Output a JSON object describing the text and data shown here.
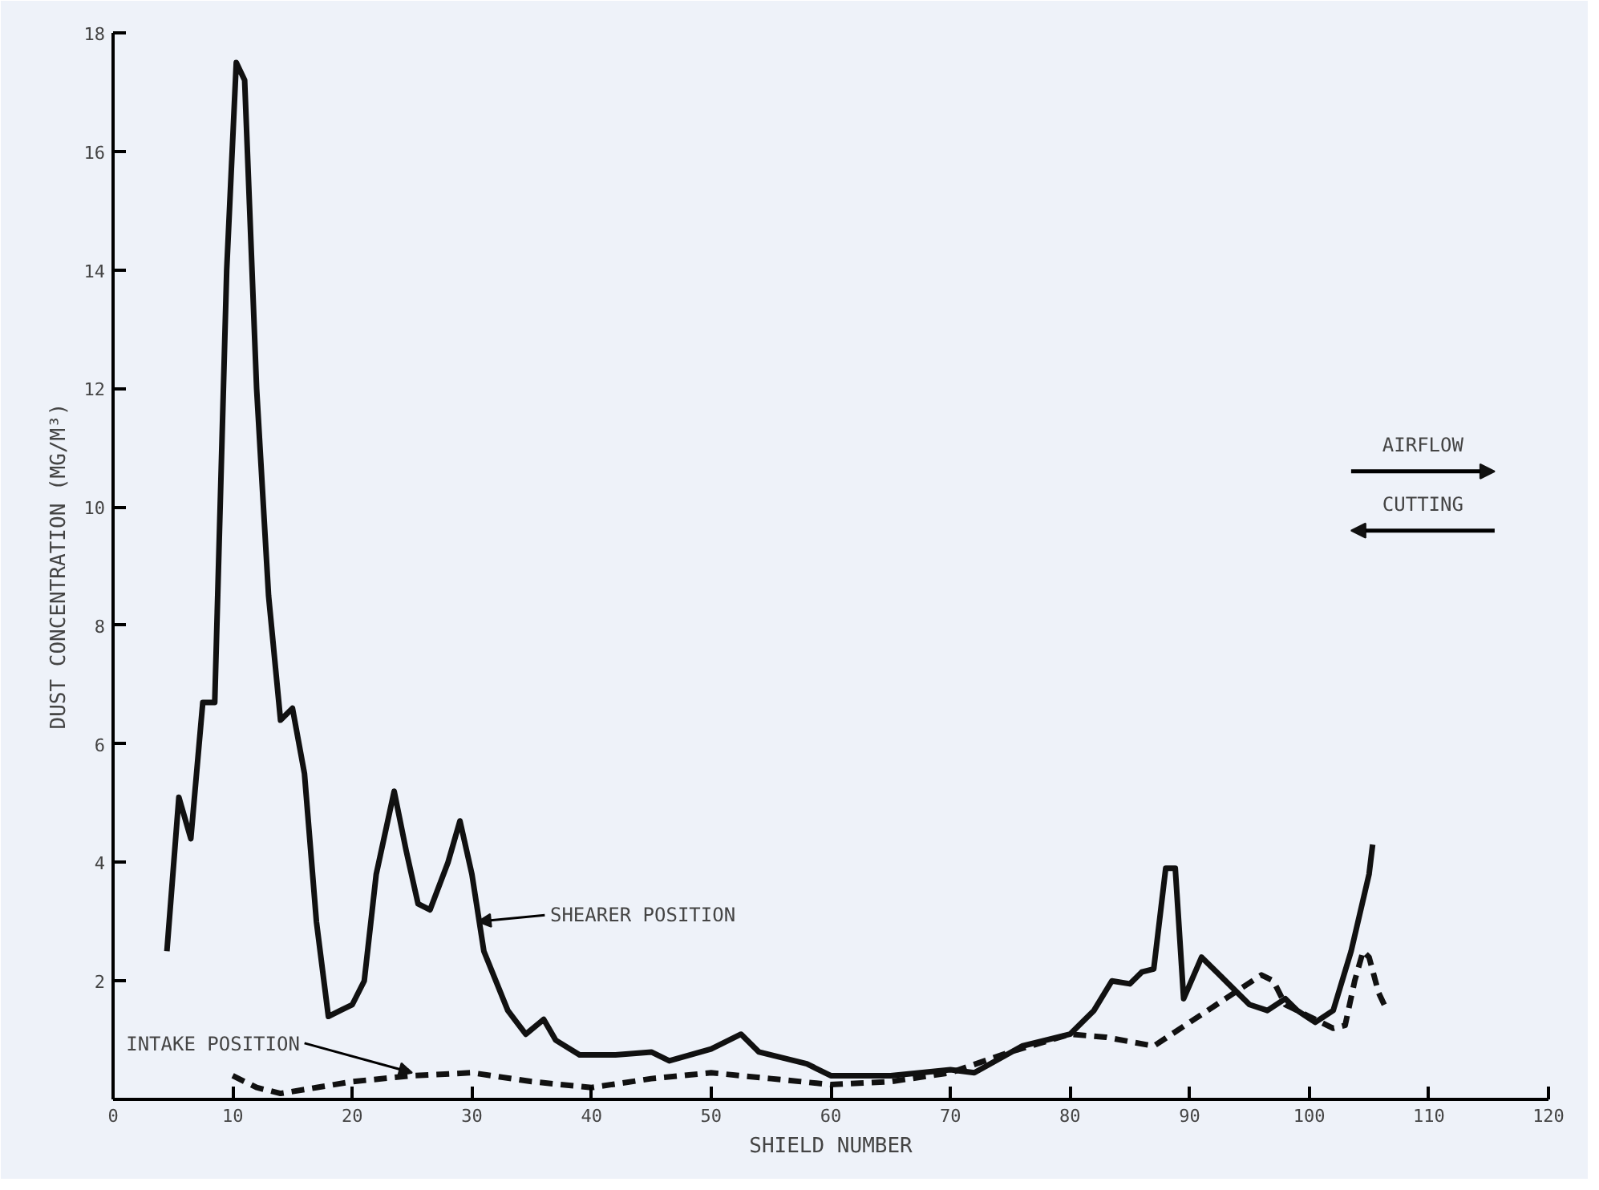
{
  "chart_data": {
    "type": "line",
    "xlabel": "SHIELD NUMBER",
    "ylabel": "DUST CONCENTRATION (MG/M³)",
    "xlim": [
      0,
      120
    ],
    "xticks": [
      0,
      10,
      20,
      30,
      40,
      50,
      60,
      70,
      80,
      90,
      100,
      110,
      120
    ],
    "ylim": [
      0,
      18
    ],
    "yticks": [
      2,
      4,
      6,
      8,
      10,
      12,
      14,
      16,
      18
    ],
    "grid": false,
    "series": [
      {
        "color": "#111111",
        "line_style": "solid",
        "x": [
          4.5,
          5.5,
          6.5,
          7.5,
          8.5,
          9.5,
          10.3,
          11,
          12,
          13,
          14,
          15,
          16,
          17,
          18,
          19,
          20,
          21,
          22,
          23.5,
          24.5,
          25.5,
          26.5,
          28,
          29,
          30,
          31,
          33,
          34.5,
          36,
          37,
          39,
          42,
          45,
          46.5,
          50,
          52.5,
          54,
          58,
          60,
          65,
          70,
          72,
          76,
          80,
          82,
          83.5,
          85,
          86,
          87,
          88,
          88.8,
          89.5,
          91,
          92.5,
          95,
          96.5,
          98,
          99,
          100.5,
          102,
          103.5,
          105,
          105.3
        ],
        "values": [
          2.5,
          5.1,
          4.4,
          6.7,
          6.7,
          14,
          17.5,
          17.2,
          12,
          8.5,
          6.4,
          6.6,
          5.5,
          3,
          1.4,
          1.5,
          1.6,
          2,
          3.8,
          5.2,
          4.2,
          3.3,
          3.2,
          4,
          4.7,
          3.8,
          2.5,
          1.5,
          1.1,
          1.35,
          1.0,
          0.75,
          0.75,
          0.8,
          0.65,
          0.85,
          1.1,
          0.8,
          0.6,
          0.4,
          0.4,
          0.5,
          0.45,
          0.9,
          1.1,
          1.5,
          2.0,
          1.95,
          2.15,
          2.2,
          3.9,
          3.9,
          1.7,
          2.4,
          2.1,
          1.6,
          1.5,
          1.7,
          1.5,
          1.3,
          1.5,
          2.5,
          3.8,
          4.3
        ]
      },
      {
        "color": "#111111",
        "line_style": "dashed",
        "x": [
          10,
          12,
          14,
          17,
          20,
          25,
          30,
          35,
          40,
          45,
          50,
          55,
          60,
          65,
          70,
          75,
          80,
          83,
          87,
          90,
          93,
          96,
          97,
          98,
          100,
          102,
          103,
          103.8,
          104.5,
          105,
          105.8,
          106.5
        ],
        "values": [
          0.4,
          0.2,
          0.1,
          0.2,
          0.3,
          0.4,
          0.45,
          0.3,
          0.2,
          0.35,
          0.45,
          0.35,
          0.25,
          0.3,
          0.45,
          0.8,
          1.1,
          1.05,
          0.9,
          1.3,
          1.7,
          2.1,
          2.0,
          1.6,
          1.4,
          1.2,
          1.25,
          2.0,
          2.5,
          2.4,
          1.8,
          1.5
        ]
      }
    ],
    "annotations": [
      {
        "text": "SHEARER POSITION",
        "x": 30.5,
        "y": 3.0
      },
      {
        "text": "INTAKE POSITION",
        "x": 25,
        "y": 0.45
      },
      "AIRFLOW",
      "CUTTING"
    ]
  }
}
